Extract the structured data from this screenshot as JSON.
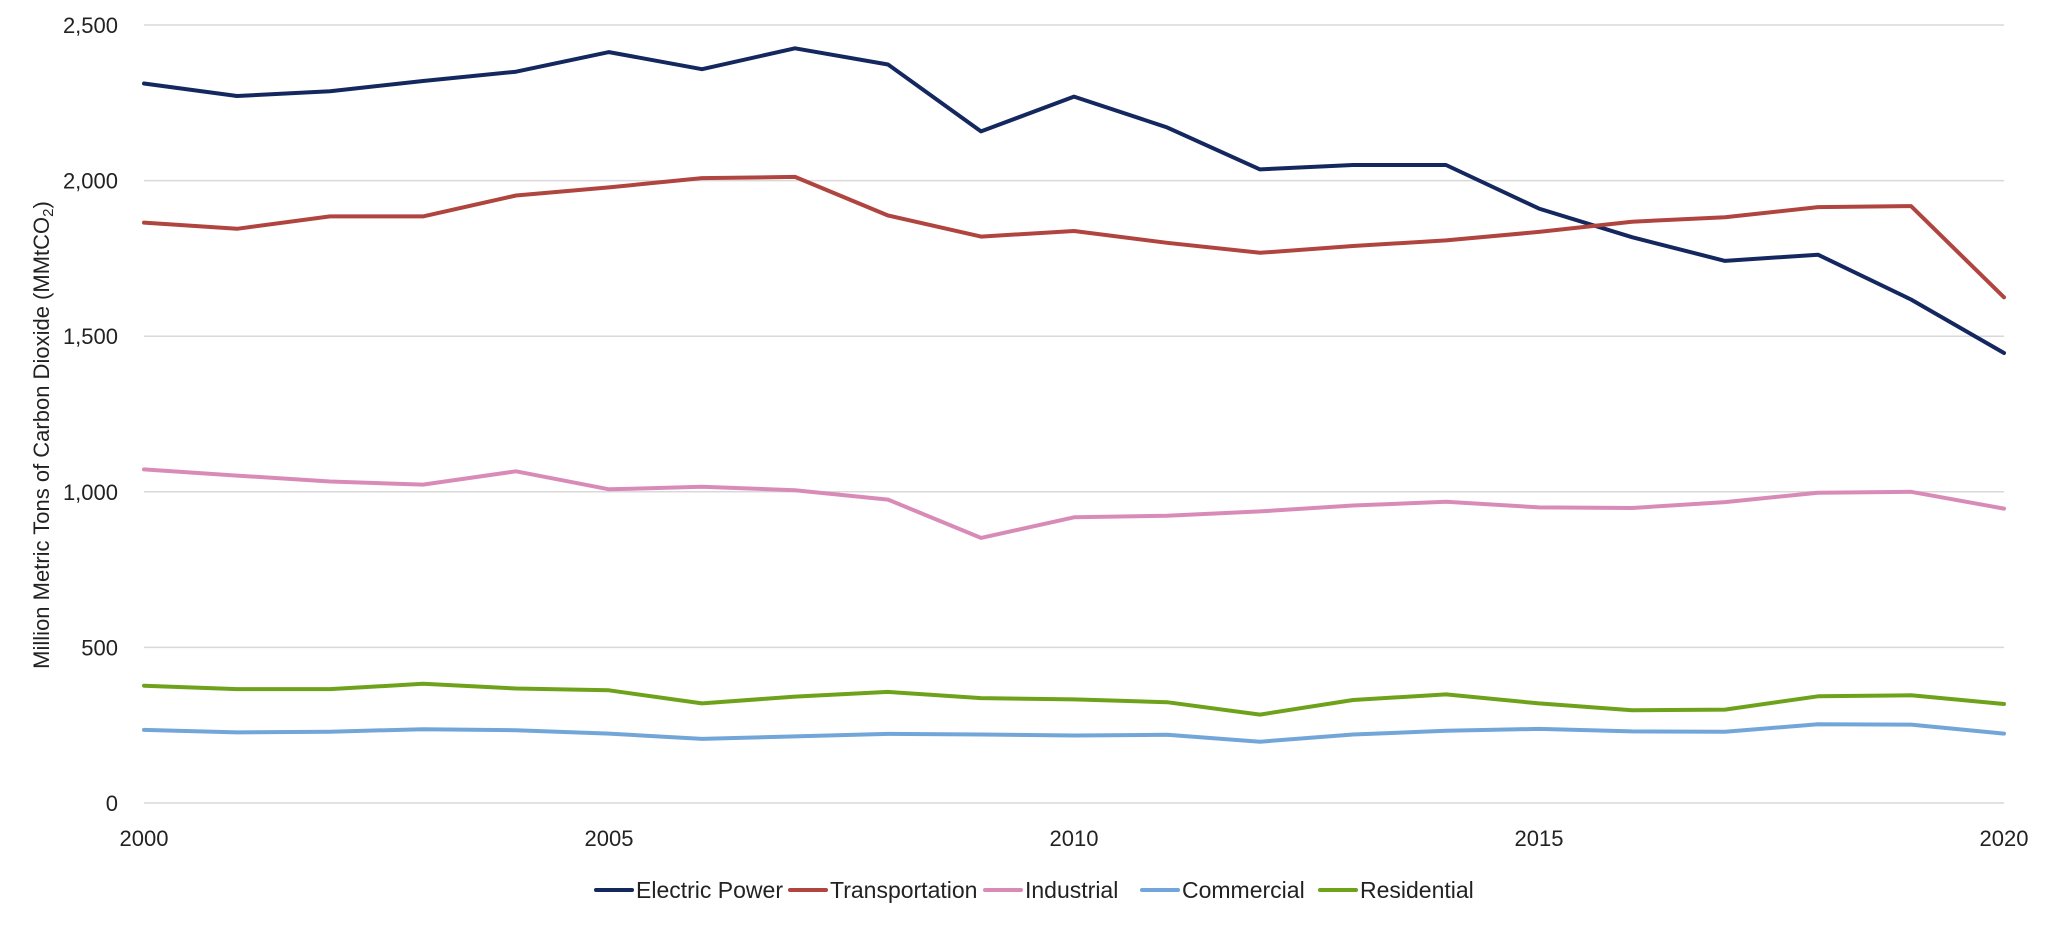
{
  "chart_data": {
    "type": "line",
    "title": "",
    "xlabel": "",
    "ylabel": "Million Metric Tons of Carbon Dioxide (MMtCO",
    "ylabel_sub": "2",
    "ylabel_end": ")",
    "x": [
      2000,
      2001,
      2002,
      2003,
      2004,
      2005,
      2006,
      2007,
      2008,
      2009,
      2010,
      2011,
      2012,
      2013,
      2014,
      2015,
      2016,
      2017,
      2018,
      2019,
      2020
    ],
    "xlim": [
      2000,
      2020
    ],
    "ylim": [
      0,
      2500
    ],
    "xticks": [
      2000,
      2005,
      2010,
      2015,
      2020
    ],
    "xtick_labels": [
      "2000",
      "2005",
      "2010",
      "2015",
      "2020"
    ],
    "yticks": [
      0,
      500,
      1000,
      1500,
      2000,
      2500
    ],
    "ytick_labels": [
      "0",
      "500",
      "1,000",
      "1,500",
      "2,000",
      "2,500"
    ],
    "grid": true,
    "legend_position": "bottom",
    "series": [
      {
        "name": "Electric Power",
        "color": "#14285f",
        "values": [
          2312,
          2272,
          2287,
          2320,
          2350,
          2413,
          2358,
          2425,
          2373,
          2158,
          2270,
          2171,
          2036,
          2050,
          2050,
          1910,
          1818,
          1742,
          1762,
          1618,
          1446
        ]
      },
      {
        "name": "Transportation",
        "color": "#b0443f",
        "values": [
          1865,
          1845,
          1885,
          1885,
          1952,
          1978,
          2008,
          2012,
          1888,
          1820,
          1838,
          1800,
          1768,
          1790,
          1808,
          1835,
          1868,
          1882,
          1915,
          1918,
          1625
        ]
      },
      {
        "name": "Industrial",
        "color": "#d98bb8",
        "values": [
          1072,
          1052,
          1033,
          1023,
          1066,
          1008,
          1016,
          1005,
          975,
          852,
          918,
          923,
          937,
          956,
          968,
          950,
          948,
          967,
          997,
          1000,
          946
        ]
      },
      {
        "name": "Commercial",
        "color": "#72a6d8",
        "values": [
          235,
          227,
          229,
          237,
          234,
          223,
          206,
          214,
          222,
          220,
          217,
          219,
          197,
          220,
          232,
          238,
          230,
          229,
          253,
          252,
          223
        ]
      },
      {
        "name": "Residential",
        "color": "#6ea21b",
        "values": [
          377,
          366,
          366,
          383,
          368,
          362,
          320,
          342,
          357,
          337,
          333,
          324,
          284,
          331,
          349,
          320,
          298,
          300,
          343,
          346,
          318
        ]
      }
    ]
  }
}
